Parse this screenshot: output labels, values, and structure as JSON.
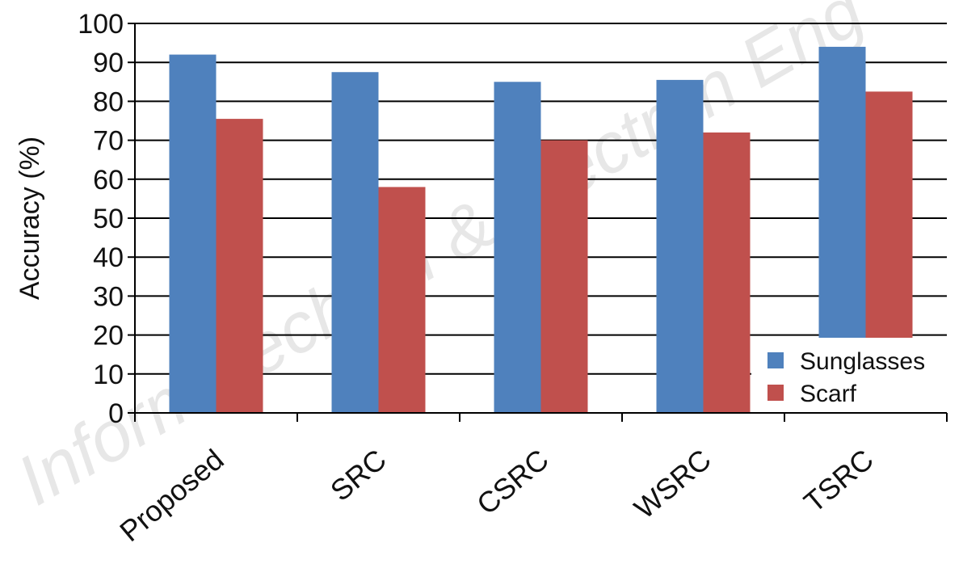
{
  "chart_data": {
    "type": "bar",
    "title": "",
    "xlabel": "",
    "ylabel": "Accuracy (%)",
    "ylim": [
      0,
      100
    ],
    "yticks": [
      0,
      10,
      20,
      30,
      40,
      50,
      60,
      70,
      80,
      90,
      100
    ],
    "grid": true,
    "legend_position": "bottom-right",
    "categories": [
      "Proposed",
      "SRC",
      "CSRC",
      "WSRC",
      "TSRC"
    ],
    "series": [
      {
        "name": "Sunglasses",
        "color": "#4f81bd",
        "values": [
          92,
          87.5,
          85,
          85.5,
          94
        ]
      },
      {
        "name": "Scarf",
        "color": "#c0504d",
        "values": [
          75.5,
          58,
          70,
          72,
          82.5
        ]
      }
    ],
    "watermark": "Inform Technol & Electron Eng"
  }
}
